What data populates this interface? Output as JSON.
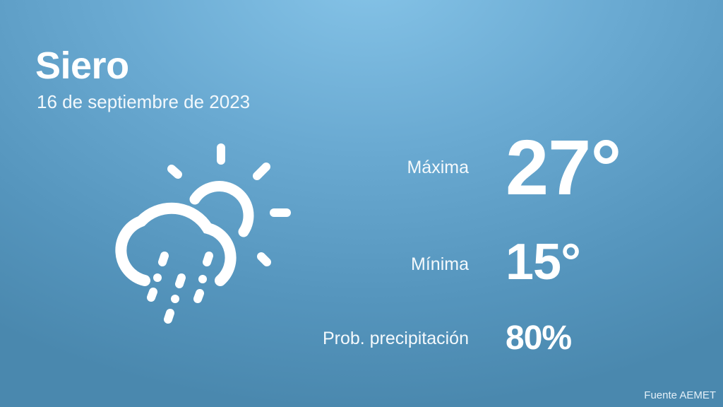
{
  "location": {
    "city": "Siero",
    "date": "16 de septiembre de 2023"
  },
  "forecast": {
    "max_label": "Máxima",
    "max_value": "27°",
    "min_label": "Mínima",
    "min_value": "15°",
    "precip_label": "Prob. precipitación",
    "precip_value": "80%"
  },
  "icon": "partly-cloudy-rain-icon",
  "source": "Fuente AEMET",
  "colors": {
    "background_top": "#86c4e8",
    "background_bottom": "#4a88ae",
    "text": "#ffffff"
  }
}
